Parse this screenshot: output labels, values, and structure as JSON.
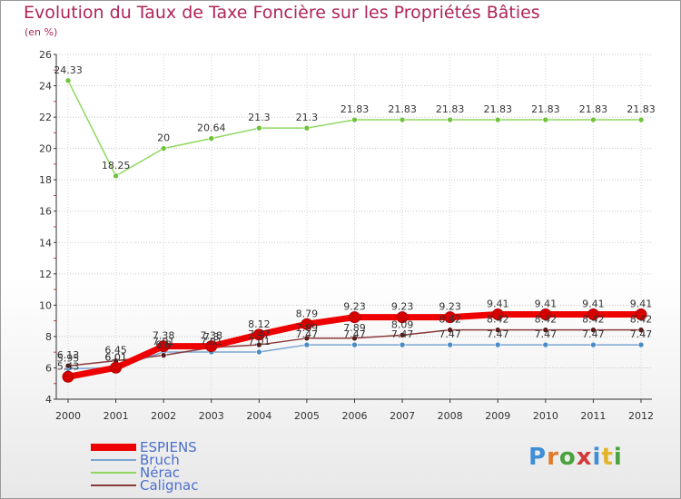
{
  "title": "Evolution du Taux de Taxe Foncière sur les Propriétés Bâties",
  "subtitle": "(en %)",
  "logo": {
    "text": "Proxiti",
    "letters": [
      {
        "ch": "P",
        "color": "#3f8fd6"
      },
      {
        "ch": "r",
        "color": "#e27a2c"
      },
      {
        "ch": "o",
        "color": "#49a23c"
      },
      {
        "ch": "x",
        "color": "#d23a3a"
      },
      {
        "ch": "i",
        "color": "#3f8fd6"
      },
      {
        "ch": "t",
        "color": "#e2b42c"
      },
      {
        "ch": "i",
        "color": "#49a23c"
      }
    ]
  },
  "chart_data": {
    "type": "line",
    "title": "Evolution du Taux de Taxe Foncière sur les Propriétés Bâties",
    "ylabel": "(en %)",
    "xlabel": "",
    "ylim": [
      4,
      26
    ],
    "yticks": [
      "4",
      "6",
      "8",
      "10",
      "12",
      "14",
      "16",
      "18",
      "20",
      "22",
      "24",
      "26"
    ],
    "categories": [
      "2000",
      "2001",
      "2002",
      "2003",
      "2004",
      "2005",
      "2006",
      "2007",
      "2008",
      "2009",
      "2010",
      "2011",
      "2012"
    ],
    "series": [
      {
        "name": "ESPIENS",
        "color": "#ee0000",
        "marker": "#d40000",
        "width": 7,
        "values": [
          5.43,
          6.01,
          7.38,
          7.38,
          8.12,
          8.79,
          9.23,
          9.23,
          9.23,
          9.41,
          9.41,
          9.41,
          9.41
        ],
        "labels": [
          "5.43",
          "6.01",
          "7.38",
          "7.38",
          "8.12",
          "8.79",
          "9.23",
          "9.23",
          "9.23",
          "9.41",
          "9.41",
          "9.41",
          "9.41"
        ]
      },
      {
        "name": "Bruch",
        "color": "#7aa5d2",
        "marker": "#4a8cc6",
        "width": 1.5,
        "values": [
          5.95,
          6.01,
          7.01,
          7.01,
          7.01,
          7.47,
          7.47,
          7.47,
          7.47,
          7.47,
          7.47,
          7.47,
          7.47
        ],
        "labels": [
          "5.95",
          "6.01",
          "7.01",
          "7.01",
          "7.01",
          "7.47",
          "7.47",
          "7.47",
          "7.47",
          "7.47",
          "7.47",
          "7.47",
          "7.47"
        ]
      },
      {
        "name": "Nérac",
        "color": "#8fd85f",
        "marker": "#6ec33c",
        "width": 1.5,
        "values": [
          24.33,
          18.25,
          20,
          20.64,
          21.3,
          21.3,
          21.83,
          21.83,
          21.83,
          21.83,
          21.83,
          21.83,
          21.83
        ],
        "labels": [
          "24.33",
          "18.25",
          "20",
          "20.64",
          "21.3",
          "21.3",
          "21.83",
          "21.83",
          "21.83",
          "21.83",
          "21.83",
          "21.83",
          "21.83"
        ]
      },
      {
        "name": "Calignac",
        "color": "#8b3a3a",
        "marker": "#5a1a1a",
        "width": 1.5,
        "values": [
          6.13,
          6.45,
          6.8,
          7.3,
          7.47,
          7.89,
          7.89,
          8.09,
          8.42,
          8.42,
          8.42,
          8.42,
          8.42
        ],
        "labels": [
          "6.13",
          "6.45",
          "6.8",
          "7.3",
          "7.47",
          "7.89",
          "7.89",
          "8.09",
          "8.42",
          "8.42",
          "8.42",
          "8.42",
          "8.42"
        ]
      }
    ]
  }
}
